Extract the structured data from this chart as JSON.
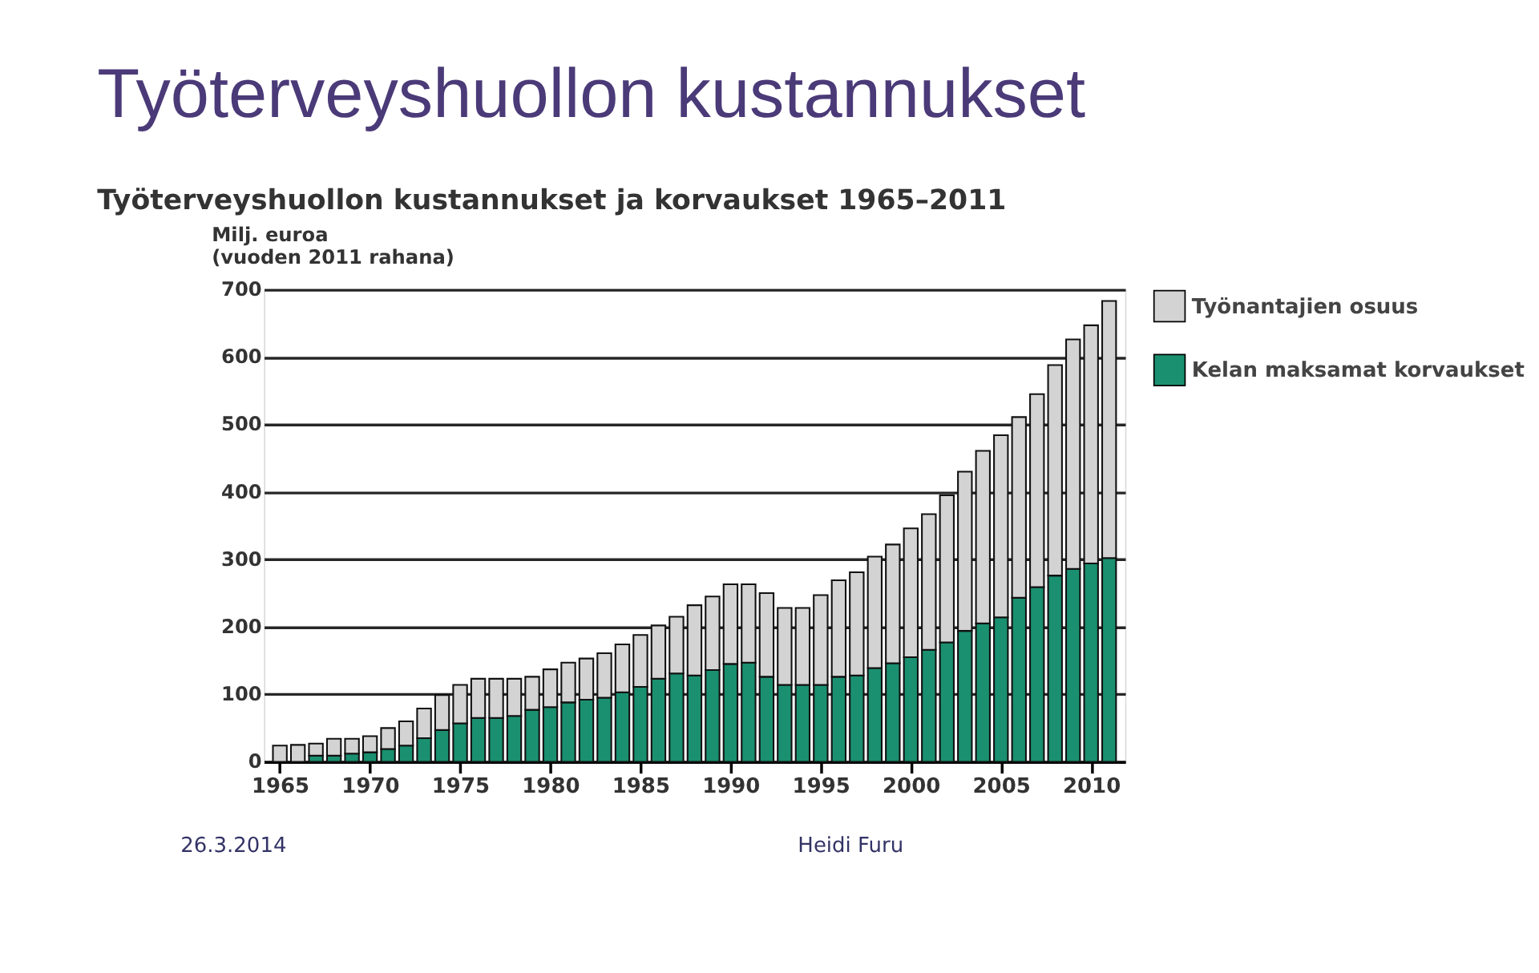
{
  "chart_data": {
    "type": "bar",
    "title": "Työterveyshuollon kustannukset",
    "subtitle": "Työterveyshuollon kustannukset ja korvaukset 1965–2011",
    "ylabel": "Milj. euroa\n(vuoden 2011 rahana)",
    "x": [
      1965,
      1966,
      1967,
      1968,
      1969,
      1970,
      1971,
      1972,
      1973,
      1974,
      1975,
      1976,
      1977,
      1978,
      1979,
      1980,
      1981,
      1982,
      1983,
      1984,
      1985,
      1986,
      1987,
      1988,
      1989,
      1990,
      1991,
      1992,
      1993,
      1994,
      1995,
      1996,
      1997,
      1998,
      1999,
      2000,
      2001,
      2002,
      2003,
      2004,
      2005,
      2006,
      2007,
      2008,
      2009,
      2010,
      2011
    ],
    "series": [
      {
        "name": "Kelan maksamat korvaukset",
        "color": "#1a9070",
        "values": [
          null,
          null,
          9,
          9,
          12,
          14,
          19,
          24,
          35,
          47,
          57,
          65,
          65,
          68,
          77,
          81,
          88,
          92,
          95,
          103,
          111,
          123,
          131,
          128,
          136,
          145,
          147,
          126,
          114,
          114,
          114,
          126,
          128,
          139,
          146,
          155,
          166,
          177,
          194,
          205,
          214,
          243,
          259,
          276,
          286,
          294,
          302
        ]
      },
      {
        "name": "Työnantajien osuus",
        "color": "#d3d3d3",
        "values": [
          24,
          25,
          18,
          25,
          22,
          24,
          31,
          36,
          44,
          52,
          57,
          58,
          58,
          55,
          49,
          56,
          59,
          61,
          66,
          71,
          77,
          79,
          84,
          104,
          109,
          118,
          116,
          124,
          114,
          114,
          133,
          143,
          153,
          165,
          176,
          191,
          201,
          218,
          236,
          256,
          270,
          268,
          286,
          312,
          340,
          353,
          381
        ]
      }
    ],
    "stacked": true,
    "xlim": [
      1964.5,
      2011.5
    ],
    "xticks": [
      1965,
      1970,
      1975,
      1980,
      1985,
      1990,
      1995,
      2000,
      2005,
      2010
    ],
    "ylim": [
      0,
      700
    ],
    "yticks": [
      0,
      100,
      200,
      300,
      400,
      500,
      600,
      700
    ],
    "grid": "y",
    "legend": "right",
    "annotations": [
      "26.3.2014",
      "Heidi Furu"
    ]
  }
}
